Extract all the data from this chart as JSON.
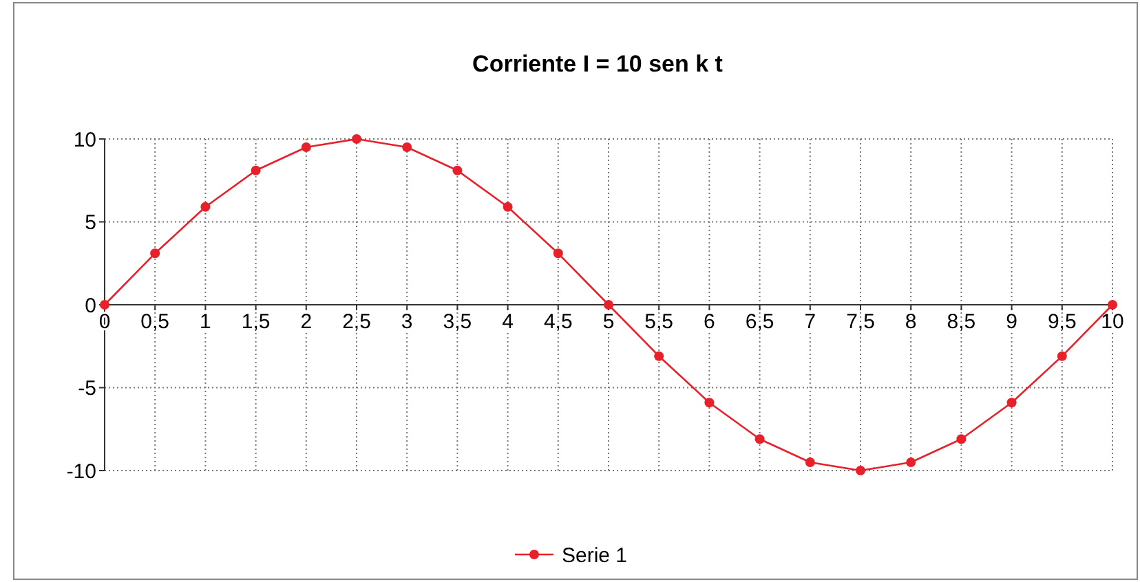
{
  "chart_data": {
    "type": "line",
    "title": "Corriente I = 10 sen k t",
    "categories": [
      "0",
      "0,5",
      "1",
      "1,5",
      "2",
      "2,5",
      "3",
      "3,5",
      "4",
      "4,5",
      "5",
      "5,5",
      "6",
      "6,5",
      "7",
      "7,5",
      "8",
      "8,5",
      "9",
      "9,5",
      "10"
    ],
    "series": [
      {
        "name": "Serie 1",
        "color": "#e8202a",
        "values": [
          0,
          3.1,
          5.9,
          8.1,
          9.5,
          10,
          9.5,
          8.1,
          5.9,
          3.1,
          0,
          -3.1,
          -5.9,
          -8.1,
          -9.5,
          -10,
          -9.5,
          -8.1,
          -5.9,
          -3.1,
          0
        ]
      }
    ],
    "ylim": [
      -10,
      10
    ],
    "yticks": [
      -10,
      -5,
      0,
      5,
      10
    ],
    "grid": true,
    "legend": "bottom",
    "marker": "circle",
    "line_style": "solid"
  }
}
